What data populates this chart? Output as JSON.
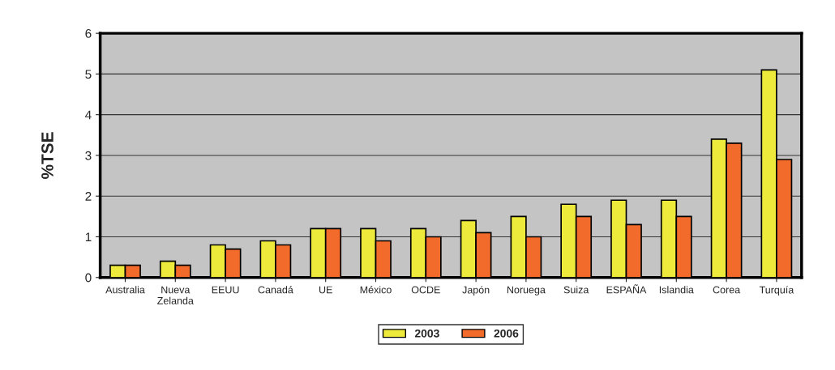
{
  "chart_data": {
    "type": "bar",
    "ylabel": "%TSE",
    "categories": [
      "Australia",
      "Nueva\nZelanda",
      "EEUU",
      "Canadá",
      "UE",
      "México",
      "OCDE",
      "Japón",
      "Noruega",
      "Suiza",
      "ESPAÑA",
      "Islandia",
      "Corea",
      "Turquía"
    ],
    "series": [
      {
        "name": "2003",
        "color": "#eeea3c",
        "values": [
          0.3,
          0.4,
          0.8,
          0.9,
          1.2,
          1.2,
          1.2,
          1.4,
          1.5,
          1.8,
          1.9,
          1.9,
          3.4,
          5.1
        ]
      },
      {
        "name": "2006",
        "color": "#f26b2a",
        "values": [
          0.3,
          0.3,
          0.7,
          0.8,
          1.2,
          0.9,
          1.0,
          1.1,
          1.0,
          1.5,
          1.3,
          1.5,
          3.3,
          2.9
        ]
      }
    ],
    "ylim": [
      0,
      6
    ],
    "yticks": [
      0,
      1,
      2,
      3,
      4,
      5,
      6
    ],
    "grid": "y",
    "legend": "bottom"
  }
}
